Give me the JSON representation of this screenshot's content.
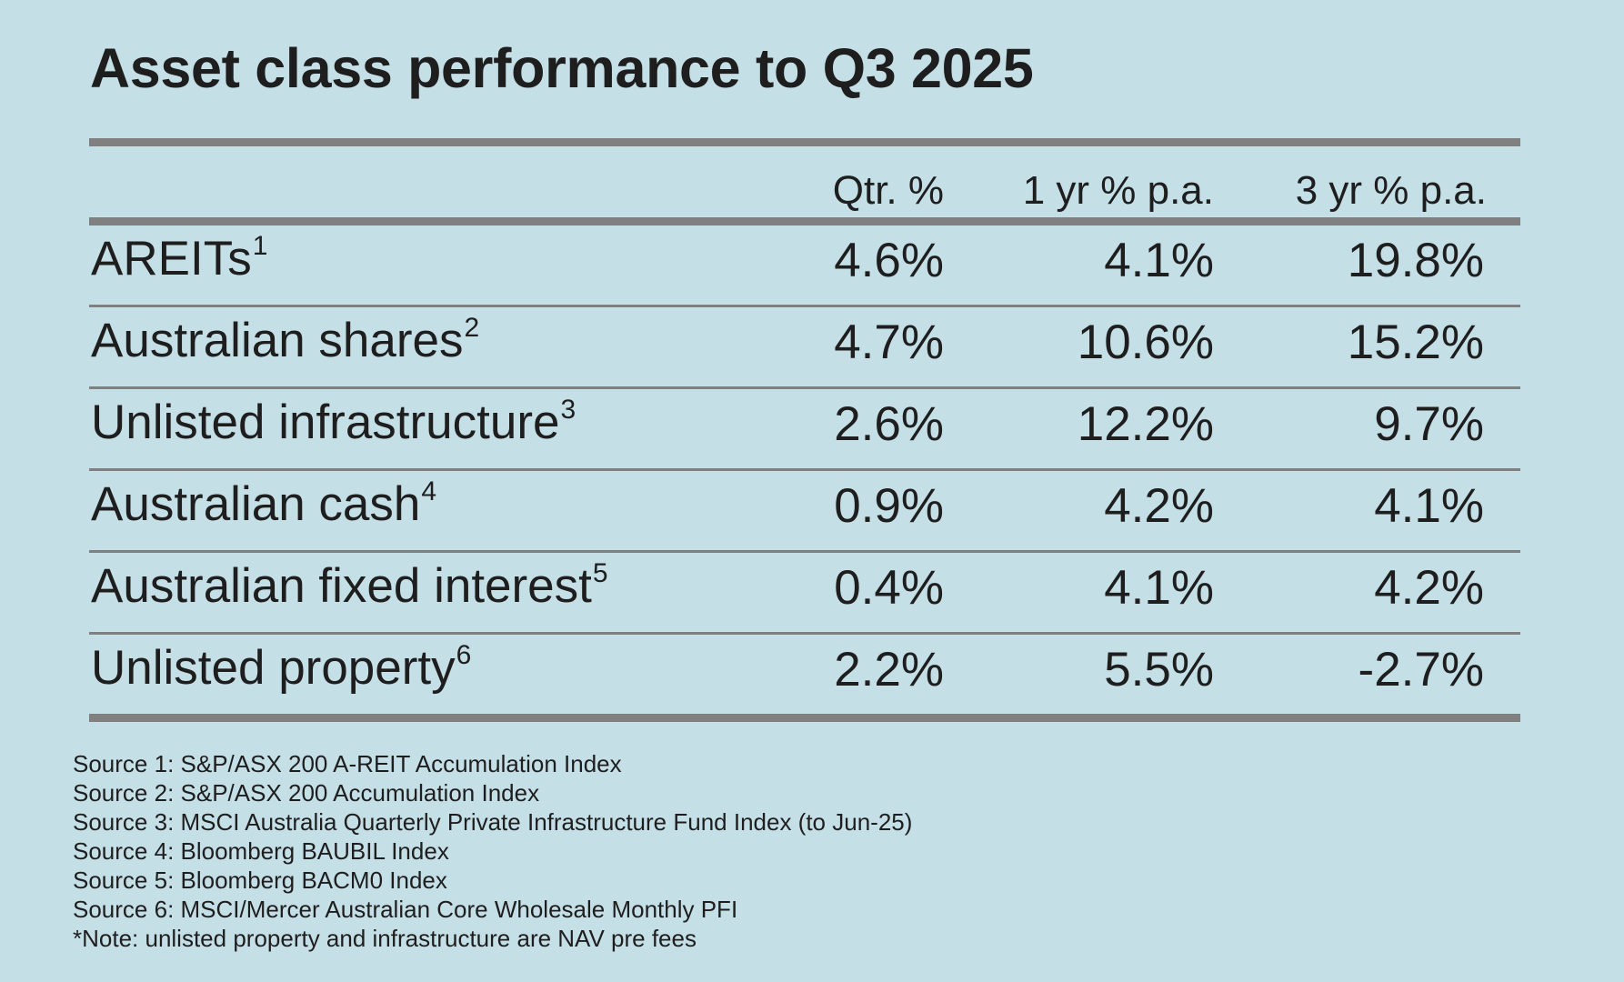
{
  "title": "Asset class performance to Q3 2025",
  "table": {
    "headers": [
      "",
      "Qtr. %",
      "1 yr % p.a.",
      "3 yr % p.a."
    ],
    "rows": [
      {
        "label": "AREITs",
        "sup": "1",
        "qtr": "4.6%",
        "yr1": "4.1%",
        "yr3": "19.8%"
      },
      {
        "label": "Australian shares",
        "sup": "2",
        "qtr": "4.7%",
        "yr1": "10.6%",
        "yr3": "15.2%"
      },
      {
        "label": "Unlisted infrastructure",
        "sup": "3",
        "qtr": "2.6%",
        "yr1": "12.2%",
        "yr3": "9.7%"
      },
      {
        "label": "Australian cash",
        "sup": "4",
        "qtr": "0.9%",
        "yr1": "4.2%",
        "yr3": "4.1%"
      },
      {
        "label": "Australian fixed interest",
        "sup": "5",
        "qtr": "0.4%",
        "yr1": "4.1%",
        "yr3": "4.2%"
      },
      {
        "label": "Unlisted property",
        "sup": "6",
        "qtr": "2.2%",
        "yr1": "5.5%",
        "yr3": "-2.7%"
      }
    ]
  },
  "sources": [
    "Source 1: S&P/ASX 200 A-REIT Accumulation Index",
    "Source 2: S&P/ASX 200 Accumulation Index",
    "Source 3: MSCI Australia Quarterly Private Infrastructure Fund Index (to Jun-25)",
    "Source 4: Bloomberg BAUBIL Index",
    "Source 5: Bloomberg BACM0 Index",
    "Source 6: MSCI/Mercer Australian Core Wholesale Monthly PFI",
    "*Note: unlisted property and infrastructure are NAV pre fees"
  ],
  "colors": {
    "background": "#c5dfe7",
    "rule": "#808080",
    "text": "#1e1e1e"
  }
}
